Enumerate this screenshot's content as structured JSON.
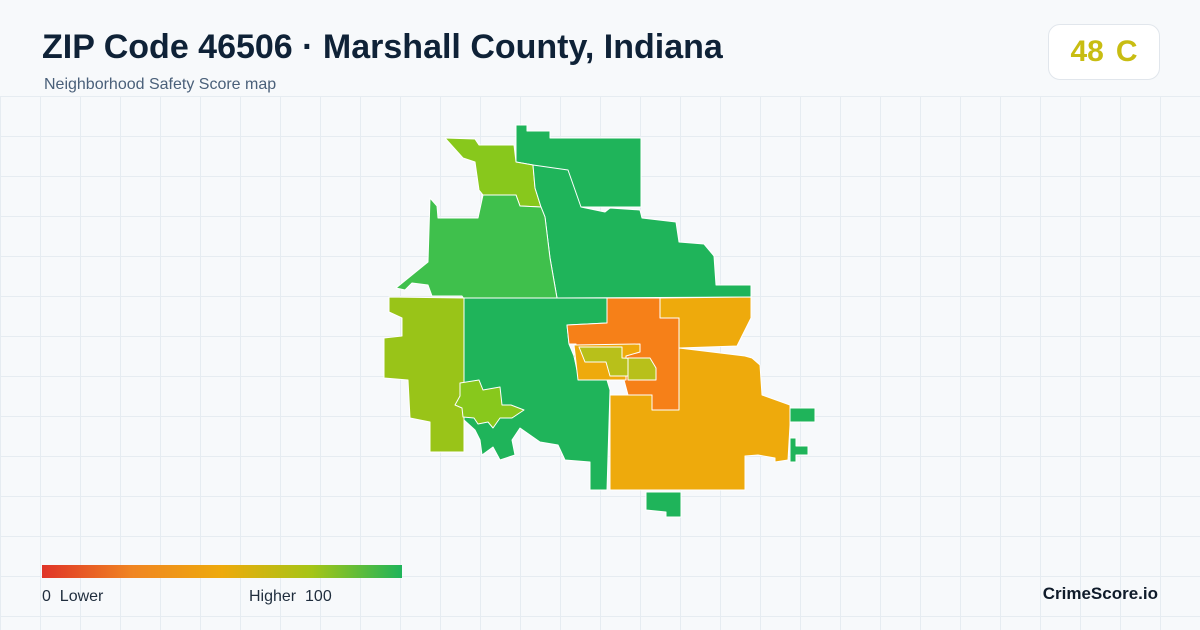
{
  "header": {
    "title": "ZIP Code 46506 · Marshall County, Indiana",
    "subtitle": "Neighborhood Safety Score map"
  },
  "score": {
    "value": "48",
    "grade": "C",
    "color": "#c8bd12"
  },
  "legend": {
    "low_text": "0  Lower",
    "high_text": "Higher  100",
    "min": 0,
    "max": 100,
    "colors": [
      "#e03428",
      "#f08522",
      "#eeaa0c",
      "#a5c516",
      "#1fb45a"
    ]
  },
  "map": {
    "region_colors": {
      "dark_green": "#1fb45a",
      "green": "#3fc04c",
      "lime": "#88c81c",
      "yellow_green": "#99c418",
      "orange": "#f68018",
      "amber": "#eeaa0c",
      "olive": "#b8c01a"
    }
  },
  "brand": "CrimeScore.io"
}
